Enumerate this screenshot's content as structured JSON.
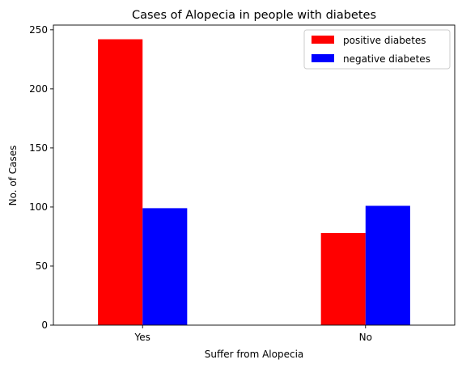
{
  "chart_data": {
    "type": "bar",
    "title": "Cases of Alopecia in people with diabetes",
    "xlabel": "Suffer from Alopecia",
    "ylabel": "No. of Cases",
    "categories": [
      "Yes",
      "No"
    ],
    "series": [
      {
        "name": "positive diabetes",
        "values": [
          242,
          78
        ],
        "color": "#ff0000"
      },
      {
        "name": "negative diabetes",
        "values": [
          99,
          101
        ],
        "color": "#0000ff"
      }
    ],
    "ylim": [
      0,
      254
    ],
    "yticks": [
      "0",
      "50",
      "100",
      "150",
      "200",
      "250"
    ],
    "grid": false,
    "legend": "top-right"
  }
}
